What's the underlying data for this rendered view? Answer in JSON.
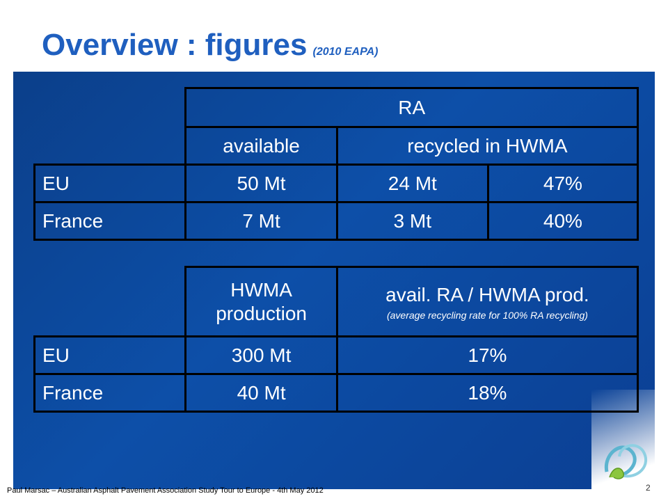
{
  "title": {
    "main": "Overview : figures",
    "source": "(2010 EAPA)"
  },
  "table_ra": {
    "group_header": "RA",
    "col_available": "available",
    "col_recycled": "recycled in HWMA",
    "rows": [
      {
        "region": "EU",
        "available": "50 Mt",
        "recycled": "24 Mt",
        "percent": "47%"
      },
      {
        "region": "France",
        "available": "7 Mt",
        "recycled": "3 Mt",
        "percent": "40%"
      }
    ]
  },
  "table_hwma": {
    "col_production": "HWMA production",
    "col_ratio": "avail. RA / HWMA prod.",
    "col_ratio_note": "(average recycling rate for 100% RA recycling)",
    "rows": [
      {
        "region": "EU",
        "production": "300 Mt",
        "ratio": "17%"
      },
      {
        "region": "France",
        "production": "40 Mt",
        "ratio": "18%"
      }
    ]
  },
  "footer": "Paul Marsac – Australian Asphalt Pavement Association Study Tour to Europe - 4th May 2012",
  "page_number": "2",
  "colors": {
    "title": "#1f5fbf",
    "panel": "#0d4fa8",
    "grid": "#000000",
    "text": "#ffffff"
  },
  "logo_icon": "ribbon-logo-icon"
}
